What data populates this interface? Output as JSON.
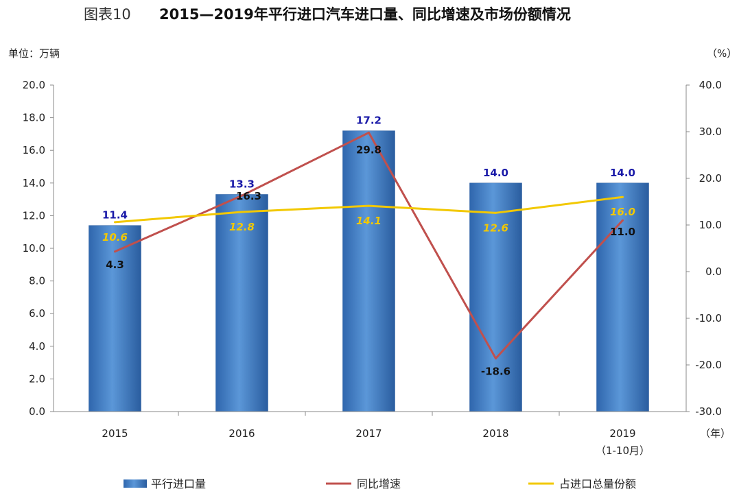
{
  "chart_data": {
    "type": "bar",
    "title_prefix": "图表10",
    "title": "2015—2019年平行进口汽车进口量、同比增速及市场份额情况",
    "y_left_unit": "单位：万辆",
    "y_right_unit": "（%）",
    "x_unit": "（年）",
    "categories": [
      "2015",
      "2016",
      "2017",
      "2018",
      "2019"
    ],
    "category_sub": [
      "",
      "",
      "",
      "",
      "（1-10月）"
    ],
    "ylim_left": [
      0,
      20
    ],
    "ylim_right": [
      -30,
      40
    ],
    "left_ticks": [
      "0.0",
      "2.0",
      "4.0",
      "6.0",
      "8.0",
      "10.0",
      "12.0",
      "14.0",
      "16.0",
      "18.0",
      "20.0"
    ],
    "right_ticks": [
      "-30.0",
      "-20.0",
      "-10.0",
      "0.0",
      "10.0",
      "20.0",
      "30.0",
      "40.0"
    ],
    "series": [
      {
        "name": "平行进口量",
        "type": "bar",
        "axis": "left",
        "color": "#4a86cc",
        "values": [
          11.4,
          13.3,
          17.2,
          14.0,
          14.0
        ],
        "labels": [
          "11.4",
          "13.3",
          "17.2",
          "14.0",
          "14.0"
        ]
      },
      {
        "name": "同比增速",
        "type": "line",
        "axis": "right",
        "color": "#c0504d",
        "values": [
          4.3,
          16.3,
          29.8,
          -18.6,
          11.0
        ],
        "labels": [
          "4.3",
          "16.3",
          "29.8",
          "-18.6",
          "11.0"
        ]
      },
      {
        "name": "占进口总量份额",
        "type": "line",
        "axis": "right",
        "color": "#f2c800",
        "values": [
          10.6,
          12.8,
          14.1,
          12.6,
          16.0
        ],
        "labels": [
          "10.6",
          "12.8",
          "14.1",
          "12.6",
          "16.0"
        ]
      }
    ],
    "legend_position": "bottom",
    "grid": false
  }
}
